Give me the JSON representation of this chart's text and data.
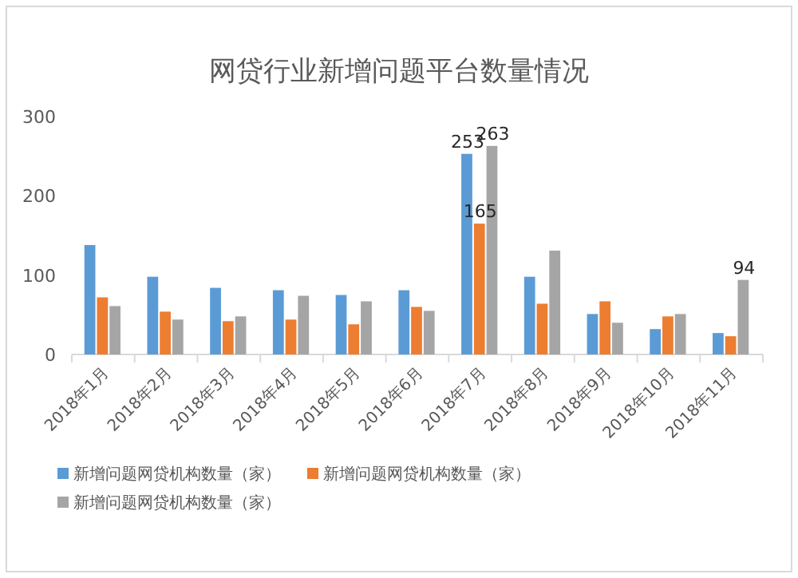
{
  "chart_data": {
    "type": "bar",
    "title": "网贷行业新增问题平台数量情况",
    "categories": [
      "2018年1月",
      "2018年2月",
      "2018年3月",
      "2018年4月",
      "2018年5月",
      "2018年6月",
      "2018年7月",
      "2018年8月",
      "2018年9月",
      "2018年10月",
      "2018年11月"
    ],
    "series": [
      {
        "name": "新增问题网贷机构数量（家）",
        "color": "#5b9bd5",
        "values": [
          138,
          98,
          84,
          81,
          75,
          81,
          253,
          98,
          51,
          32,
          27
        ],
        "value_labels": [
          null,
          null,
          null,
          null,
          null,
          null,
          "253",
          null,
          null,
          null,
          null
        ]
      },
      {
        "name": "新增问题网贷机构数量（家）",
        "color": "#ed7d31",
        "values": [
          72,
          54,
          42,
          44,
          38,
          60,
          165,
          64,
          67,
          48,
          23
        ],
        "value_labels": [
          null,
          null,
          null,
          null,
          null,
          null,
          "165",
          null,
          null,
          null,
          null
        ]
      },
      {
        "name": "新增问题网贷机构数量（家）",
        "color": "#a5a5a5",
        "values": [
          61,
          44,
          48,
          74,
          67,
          55,
          263,
          131,
          40,
          51,
          94
        ],
        "value_labels": [
          null,
          null,
          null,
          null,
          null,
          null,
          "263",
          null,
          null,
          null,
          "94"
        ]
      }
    ],
    "ylim": [
      0,
      300
    ],
    "yticks": [
      0,
      100,
      200,
      300
    ],
    "grid": false,
    "legend": "bottom"
  }
}
